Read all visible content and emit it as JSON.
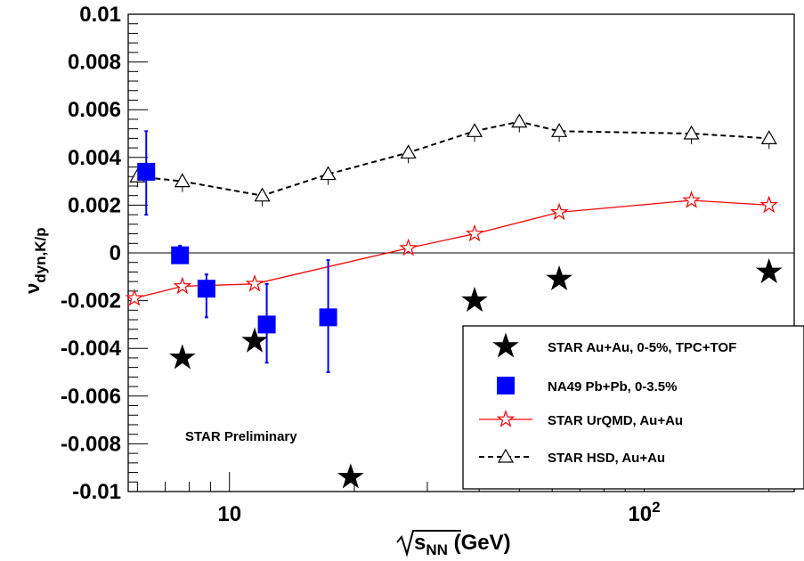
{
  "chart_data": {
    "type": "scatter",
    "xscale": "log",
    "xlim": [
      5.7,
      230
    ],
    "ylim": [
      -0.01,
      0.01
    ],
    "grid": false,
    "legend_position": "bottom-right",
    "xlabel_main": "s",
    "xlabel_sub": "NN",
    "xlabel_unit": "(GeV)",
    "ylabel_main": "ν",
    "ylabel_sub": "dyn,K/p",
    "annotation": "STAR Preliminary",
    "xticks": [
      {
        "value": 10,
        "base": "10",
        "exp": ""
      },
      {
        "value": 100,
        "base": "10",
        "exp": "2"
      }
    ],
    "yticks": [
      {
        "value": 0.01,
        "label": "0.01"
      },
      {
        "value": 0.008,
        "label": "0.008"
      },
      {
        "value": 0.006,
        "label": "0.006"
      },
      {
        "value": 0.004,
        "label": "0.004"
      },
      {
        "value": 0.002,
        "label": "0.002"
      },
      {
        "value": 0,
        "label": "0"
      },
      {
        "value": -0.002,
        "label": "-0.002"
      },
      {
        "value": -0.004,
        "label": "-0.004"
      },
      {
        "value": -0.006,
        "label": "-0.006"
      },
      {
        "value": -0.008,
        "label": "-0.008"
      },
      {
        "value": -0.01,
        "label": "-0.01"
      }
    ],
    "series": [
      {
        "name": "STAR Au+Au, 0-5%, TPC+TOF",
        "marker": "star-filled",
        "color": "#000000",
        "line": "none",
        "x": [
          7.7,
          11.5,
          19.6,
          39,
          62.4,
          200
        ],
        "y": [
          -0.0044,
          -0.0037,
          -0.0094,
          -0.002,
          -0.0011,
          -0.0008
        ]
      },
      {
        "name": "NA49 Pb+Pb, 0-3.5%",
        "marker": "square-filled",
        "color": "#0000ff",
        "line": "none",
        "x": [
          6.3,
          7.6,
          8.8,
          12.3,
          17.3
        ],
        "y": [
          0.0034,
          -0.0001,
          -0.0015,
          -0.003,
          -0.0027
        ],
        "err_lo": [
          0.0018,
          0.0003,
          0.0012,
          0.0016,
          0.0023
        ],
        "err_hi": [
          0.0017,
          0.0004,
          0.0006,
          0.0017,
          0.0024
        ]
      },
      {
        "name": "STAR UrQMD, Au+Au",
        "marker": "star-open",
        "color": "#ff0000",
        "line": "solid",
        "x": [
          5.9,
          7.7,
          11.5,
          27,
          39,
          62.4,
          130,
          200
        ],
        "y": [
          -0.0019,
          -0.0014,
          -0.0013,
          0.0002,
          0.0008,
          0.0017,
          0.0022,
          0.002
        ]
      },
      {
        "name": "STAR HSD, Au+Au",
        "marker": "triangle-open",
        "color": "#000000",
        "line": "dashed",
        "x": [
          6.0,
          7.7,
          12.0,
          17.3,
          27,
          39,
          50,
          62.4,
          130,
          200
        ],
        "y": [
          0.0032,
          0.003,
          0.0024,
          0.0033,
          0.0042,
          0.0051,
          0.0055,
          0.0051,
          0.005,
          0.0048
        ]
      }
    ]
  }
}
